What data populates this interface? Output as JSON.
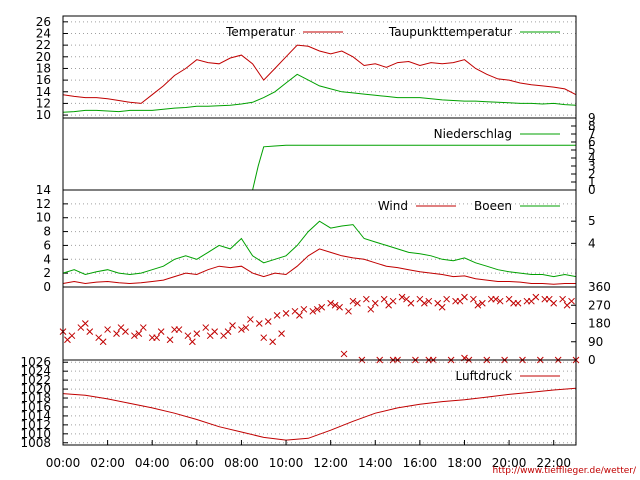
{
  "source_url": "http://www.tiefflieger.de/wetter/",
  "colors": {
    "red": "#c00000",
    "green": "#00a000",
    "grid": "#a0a0a0",
    "frame": "#000000"
  },
  "chart_data": {
    "type": "line",
    "x_axis": {
      "unit": "hour",
      "range": [
        0,
        23
      ],
      "tick_labels": [
        "00:00",
        "02:00",
        "04:00",
        "06:00",
        "08:00",
        "10:00",
        "12:00",
        "14:00",
        "16:00",
        "18:00",
        "20:00",
        "22:00"
      ],
      "tick_hours": [
        0,
        2,
        4,
        6,
        8,
        10,
        12,
        14,
        16,
        18,
        20,
        22
      ]
    },
    "panels": [
      {
        "id": "temperature",
        "left_ticks": [
          "10",
          "12",
          "14",
          "16",
          "18",
          "20",
          "22",
          "24",
          "26"
        ],
        "left_tick_values": [
          10,
          12,
          14,
          16,
          18,
          20,
          22,
          24,
          26
        ],
        "ylim": [
          9.5,
          27
        ],
        "grid": "dotted",
        "legend_placement": "top-right",
        "series": [
          {
            "name": "Temperatur",
            "color": "red",
            "x": [
              0,
              0.5,
              1,
              1.5,
              2,
              2.5,
              3,
              3.5,
              4,
              4.5,
              5,
              5.5,
              6,
              6.5,
              7,
              7.5,
              8,
              8.5,
              9,
              9.5,
              10,
              10.5,
              11,
              11.5,
              12,
              12.5,
              13,
              13.5,
              14,
              14.5,
              15,
              15.5,
              16,
              16.5,
              17,
              17.5,
              18,
              18.5,
              19,
              19.5,
              20,
              20.5,
              21,
              21.5,
              22,
              22.5,
              23
            ],
            "y": [
              13.5,
              13.2,
              13.0,
              13.0,
              12.8,
              12.5,
              12.2,
              12.0,
              13.5,
              15.0,
              16.8,
              18.0,
              19.5,
              19.0,
              18.8,
              19.8,
              20.3,
              18.8,
              16.0,
              18.0,
              20.0,
              22.0,
              21.8,
              21.0,
              20.5,
              21.0,
              20.0,
              18.5,
              18.8,
              18.2,
              19.0,
              19.2,
              18.5,
              19.0,
              18.8,
              19.0,
              19.5,
              18.0,
              17.0,
              16.2,
              16.0,
              15.5,
              15.2,
              15.0,
              14.8,
              14.5,
              13.5
            ]
          },
          {
            "name": "Taupunkttemperatur",
            "color": "green",
            "x": [
              0,
              0.5,
              1,
              1.5,
              2,
              2.5,
              3,
              3.5,
              4,
              4.5,
              5,
              5.5,
              6,
              6.5,
              7,
              7.5,
              8,
              8.5,
              9,
              9.5,
              10,
              10.5,
              11,
              11.5,
              12,
              12.5,
              13,
              13.5,
              14,
              14.5,
              15,
              15.5,
              16,
              16.5,
              17,
              17.5,
              18,
              18.5,
              19,
              19.5,
              20,
              20.5,
              21,
              21.5,
              22,
              22.5,
              23
            ],
            "y": [
              10.5,
              10.6,
              10.8,
              10.8,
              10.7,
              10.6,
              10.8,
              10.8,
              10.8,
              11.0,
              11.2,
              11.3,
              11.5,
              11.5,
              11.6,
              11.7,
              11.9,
              12.2,
              13.0,
              14.0,
              15.5,
              17.0,
              16.0,
              15.0,
              14.5,
              14.0,
              13.8,
              13.6,
              13.4,
              13.2,
              13.0,
              13.0,
              13.0,
              12.8,
              12.6,
              12.5,
              12.4,
              12.4,
              12.3,
              12.2,
              12.1,
              12.0,
              12.0,
              11.9,
              12.0,
              11.8,
              11.7
            ]
          }
        ]
      },
      {
        "id": "precipitation",
        "right_ticks": [
          "0",
          "1",
          "2",
          "3",
          "4",
          "5",
          "6",
          "7",
          "8",
          "9"
        ],
        "right_tick_values": [
          0,
          1,
          2,
          3,
          4,
          5,
          6,
          7,
          8,
          9
        ],
        "ylim": [
          0,
          9
        ],
        "legend_placement": "top-right",
        "series": [
          {
            "name": "Niederschlag",
            "color": "green",
            "x": [
              0,
              8.0,
              8.25,
              8.5,
              8.75,
              9.0,
              9.5,
              10.0,
              23
            ],
            "y": [
              0,
              0,
              0,
              0,
              3.0,
              5.4,
              5.5,
              5.6,
              5.6
            ]
          }
        ]
      },
      {
        "id": "wind",
        "left_ticks": [
          "0",
          "2",
          "4",
          "6",
          "8",
          "10",
          "12",
          "14"
        ],
        "left_tick_values": [
          0,
          2,
          4,
          6,
          8,
          10,
          12,
          14
        ],
        "right_ticks": [
          "4",
          "5"
        ],
        "right_tick_values": [
          6.3,
          9.5
        ],
        "ylim": [
          0,
          14
        ],
        "grid": "dotted",
        "legend_placement": "top-right",
        "series": [
          {
            "name": "Wind",
            "color": "red",
            "x": [
              0,
              0.5,
              1,
              1.5,
              2,
              2.5,
              3,
              3.5,
              4,
              4.5,
              5,
              5.5,
              6,
              6.5,
              7,
              7.5,
              8,
              8.5,
              9,
              9.5,
              10,
              10.5,
              11,
              11.5,
              12,
              12.5,
              13,
              13.5,
              14,
              14.5,
              15,
              15.5,
              16,
              16.5,
              17,
              17.5,
              18,
              18.5,
              19,
              19.5,
              20,
              20.5,
              21,
              21.5,
              22,
              22.5,
              23
            ],
            "y": [
              0.5,
              0.8,
              0.5,
              0.7,
              0.8,
              0.6,
              0.5,
              0.6,
              0.8,
              1.0,
              1.5,
              2.0,
              1.8,
              2.5,
              3.0,
              2.8,
              3.0,
              2.0,
              1.5,
              2.0,
              1.8,
              3.0,
              4.5,
              5.5,
              5.0,
              4.5,
              4.2,
              4.0,
              3.5,
              3.0,
              2.8,
              2.5,
              2.2,
              2.0,
              1.8,
              1.5,
              1.6,
              1.2,
              1.0,
              0.8,
              0.8,
              0.7,
              0.5,
              0.5,
              0.4,
              0.5,
              0.5
            ]
          },
          {
            "name": "Boeen",
            "color": "green",
            "x": [
              0,
              0.5,
              1,
              1.5,
              2,
              2.5,
              3,
              3.5,
              4,
              4.5,
              5,
              5.5,
              6,
              6.5,
              7,
              7.5,
              8,
              8.5,
              9,
              9.5,
              10,
              10.5,
              11,
              11.5,
              12,
              12.5,
              13,
              13.5,
              14,
              14.5,
              15,
              15.5,
              16,
              16.5,
              17,
              17.5,
              18,
              18.5,
              19,
              19.5,
              20,
              20.5,
              21,
              21.5,
              22,
              22.5,
              23
            ],
            "y": [
              2.0,
              2.5,
              1.8,
              2.2,
              2.5,
              2.0,
              1.8,
              2.0,
              2.5,
              3.0,
              4.0,
              4.5,
              4.0,
              5.0,
              6.0,
              5.5,
              7.0,
              4.5,
              3.5,
              4.0,
              4.5,
              6.0,
              8.0,
              9.5,
              8.5,
              8.8,
              9.0,
              7.0,
              6.5,
              6.0,
              5.5,
              5.0,
              4.8,
              4.5,
              4.0,
              3.8,
              4.2,
              3.5,
              3.0,
              2.5,
              2.2,
              2.0,
              1.8,
              1.8,
              1.5,
              1.8,
              1.5
            ]
          }
        ]
      },
      {
        "id": "wind_direction",
        "type": "scatter",
        "right_ticks": [
          "0",
          "90",
          "180",
          "270",
          "360"
        ],
        "right_tick_values": [
          0,
          90,
          180,
          270,
          360
        ],
        "ylim": [
          0,
          360
        ],
        "series": [
          {
            "color": "red",
            "x": [
              0,
              0.4,
              0.8,
              1.2,
              1.6,
              2.0,
              2.4,
              2.8,
              3.2,
              3.6,
              4.0,
              4.4,
              4.8,
              5.2,
              5.6,
              6.0,
              6.4,
              6.8,
              7.2,
              7.6,
              8.0,
              8.4,
              8.8,
              9.2,
              9.6,
              10.0,
              10.4,
              10.8,
              11.2,
              11.6,
              12.0,
              12.4,
              12.8,
              13.2,
              13.6,
              14.0,
              14.4,
              14.8,
              15.2,
              15.6,
              16.0,
              16.4,
              16.8,
              17.2,
              17.6,
              18.0,
              18.4,
              18.8,
              19.2,
              19.6,
              20.0,
              20.4,
              20.8,
              21.2,
              21.6,
              22.0,
              22.4,
              22.8,
              0.2,
              1.0,
              1.8,
              2.6,
              3.4,
              4.2,
              5.0,
              5.8,
              6.6,
              7.4,
              8.2,
              9.0,
              9.8,
              10.6,
              11.4,
              12.2,
              13.0,
              13.8,
              14.6,
              15.4,
              16.2,
              17.0,
              17.8,
              18.6,
              19.4,
              20.2,
              21.0,
              21.8,
              22.6,
              13.4,
              14.2,
              15.0,
              15.8,
              16.6,
              17.4,
              18.2,
              19.0,
              19.8,
              20.6,
              21.4,
              22.2,
              23.0,
              9.4,
              12.6,
              14.8,
              16.4,
              18.0
            ],
            "y": [
              140,
              120,
              160,
              140,
              110,
              150,
              130,
              140,
              120,
              160,
              110,
              140,
              100,
              150,
              120,
              130,
              160,
              140,
              120,
              170,
              150,
              200,
              180,
              190,
              220,
              230,
              240,
              250,
              240,
              260,
              280,
              260,
              240,
              280,
              300,
              280,
              300,
              290,
              310,
              280,
              300,
              290,
              280,
              300,
              290,
              310,
              300,
              280,
              300,
              290,
              300,
              280,
              290,
              310,
              300,
              280,
              300,
              290,
              100,
              180,
              90,
              160,
              130,
              110,
              150,
              90,
              120,
              140,
              160,
              110,
              130,
              220,
              250,
              270,
              290,
              250,
              270,
              300,
              280,
              260,
              290,
              270,
              300,
              280,
              290,
              300,
              270,
              0,
              0,
              0,
              0,
              0,
              0,
              0,
              0,
              0,
              0,
              0,
              0,
              0,
              90,
              30,
              0,
              0,
              10
            ]
          }
        ]
      },
      {
        "id": "pressure",
        "left_ticks": [
          "1008",
          "1010",
          "1012",
          "1014",
          "1016",
          "1018",
          "1020",
          "1022",
          "1024",
          "1026"
        ],
        "left_tick_values": [
          1008,
          1010,
          1012,
          1014,
          1016,
          1018,
          1020,
          1022,
          1024,
          1026
        ],
        "ylim": [
          1007.5,
          1026.5
        ],
        "grid": "dotted",
        "legend_placement": "top-right",
        "series": [
          {
            "name": "Luftdruck",
            "color": "red",
            "x": [
              0,
              1,
              2,
              3,
              4,
              5,
              6,
              7,
              8,
              9,
              10,
              11,
              12,
              13,
              14,
              15,
              16,
              17,
              18,
              19,
              20,
              21,
              22,
              23
            ],
            "y": [
              1019.0,
              1018.6,
              1017.8,
              1016.8,
              1015.8,
              1014.6,
              1013.2,
              1011.6,
              1010.4,
              1009.2,
              1008.6,
              1009.0,
              1010.8,
              1012.8,
              1014.6,
              1015.8,
              1016.6,
              1017.2,
              1017.6,
              1018.2,
              1018.8,
              1019.3,
              1019.8,
              1020.2
            ]
          }
        ]
      }
    ]
  }
}
